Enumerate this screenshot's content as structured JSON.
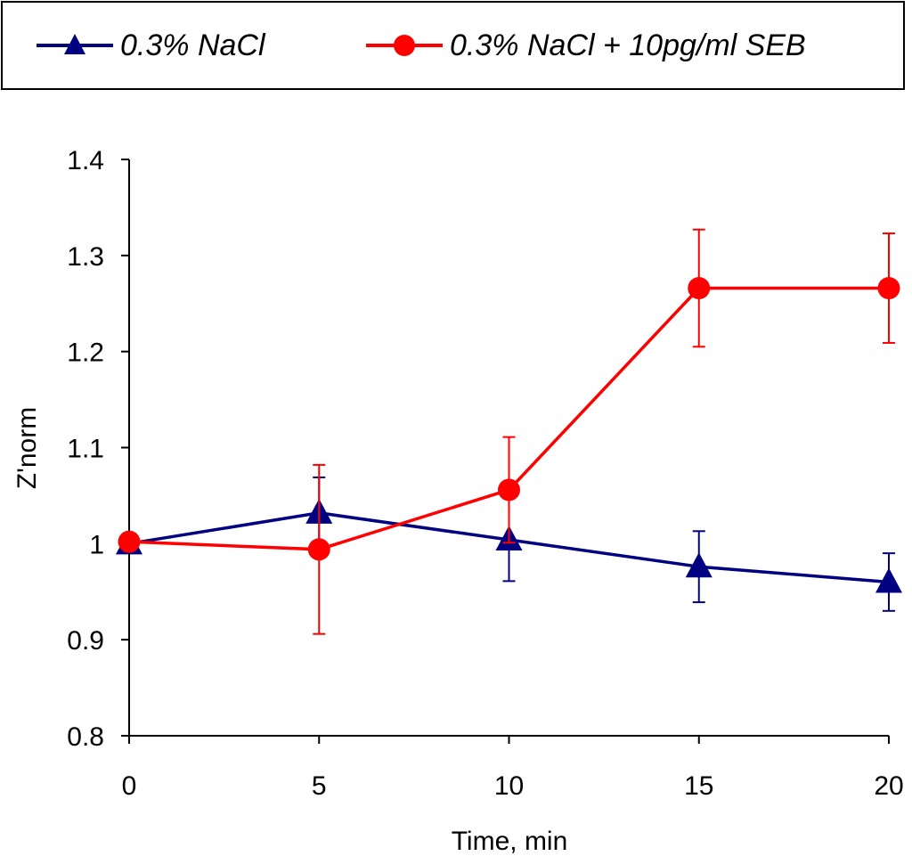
{
  "chart_data": {
    "type": "line",
    "title": "",
    "xlabel": "Time, min",
    "ylabel": "Z'norm",
    "x": [
      0,
      5,
      10,
      15,
      20
    ],
    "xticks": [
      "0",
      "5",
      "10",
      "15",
      "20"
    ],
    "xlim": [
      0,
      20
    ],
    "yticks": [
      "0.8",
      "0.9",
      "1",
      "1.1",
      "1.2",
      "1.3",
      "1.4"
    ],
    "ylim": [
      0.8,
      1.4
    ],
    "grid": false,
    "legend_position": "top",
    "series": [
      {
        "name": "0.3% NaCl",
        "color": "#000080",
        "marker": "triangle",
        "values": [
          1.0,
          1.032,
          1.004,
          0.976,
          0.96
        ],
        "error": [
          0.0,
          0.037,
          0.043,
          0.037,
          0.03
        ]
      },
      {
        "name": "0.3% NaCl + 10pg/ml SEB",
        "color": "#ff0000",
        "marker": "circle",
        "values": [
          1.002,
          0.994,
          1.056,
          1.266,
          1.266
        ],
        "error": [
          0.0,
          0.088,
          0.055,
          0.061,
          0.057
        ]
      }
    ]
  }
}
